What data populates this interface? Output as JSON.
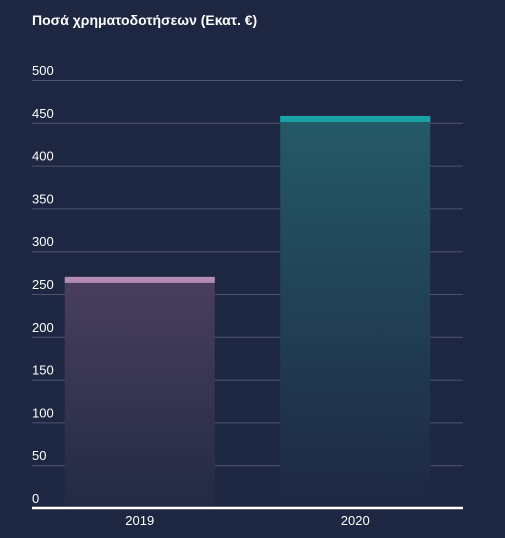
{
  "chart_data": {
    "type": "bar",
    "title": "Ποσά χρηματοδοτήσεων (Εκατ. €)",
    "xlabel": "",
    "ylabel": "",
    "categories": [
      "2019",
      "2020"
    ],
    "values": [
      270,
      458
    ],
    "ylim": [
      0,
      500
    ],
    "yticks": [
      0,
      50,
      100,
      150,
      200,
      250,
      300,
      350,
      400,
      450,
      500
    ],
    "grid": true,
    "legend": "none",
    "colors": {
      "background": "#1e2742",
      "grid": "#4c5670",
      "axis": "#ffffff",
      "bars": [
        {
          "top": "#b38db8",
          "gradient_start": "#4a3f5f",
          "gradient_end": "#222a44"
        },
        {
          "top": "#1aa3a6",
          "gradient_start": "#245a68",
          "gradient_end": "#1e2742"
        }
      ]
    }
  }
}
